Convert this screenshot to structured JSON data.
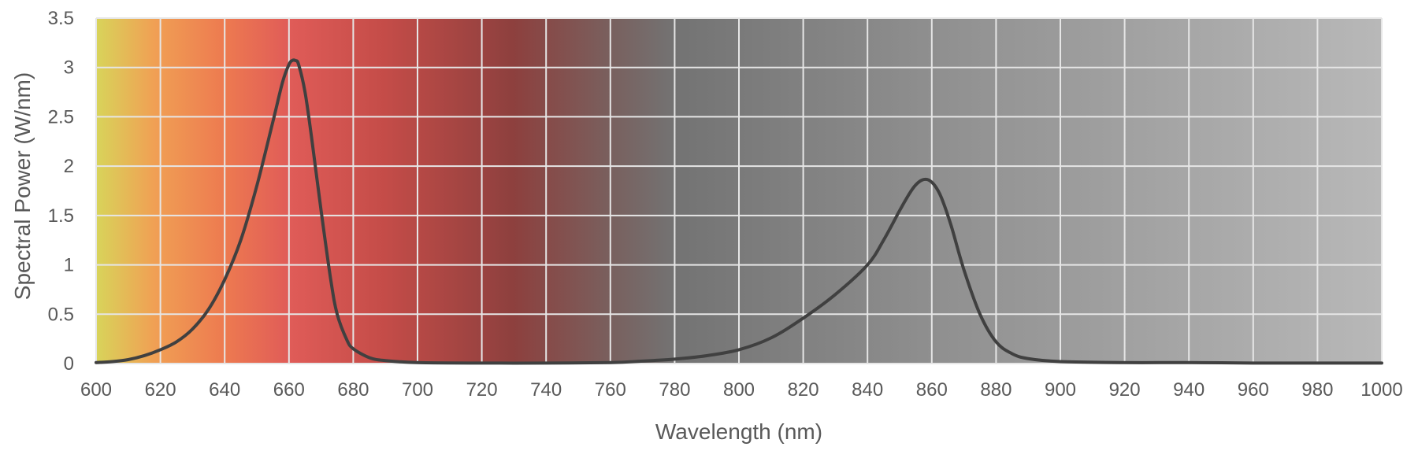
{
  "chart_data": {
    "type": "line",
    "title": "",
    "xlabel": "Wavelength (nm)",
    "ylabel": "Spectral Power (W/nm)",
    "xlim": [
      600,
      1000
    ],
    "ylim": [
      0,
      3.5
    ],
    "x_ticks": [
      600,
      620,
      640,
      660,
      680,
      700,
      720,
      740,
      760,
      780,
      800,
      820,
      840,
      860,
      880,
      900,
      920,
      940,
      960,
      980,
      1000
    ],
    "y_ticks": [
      0,
      0.5,
      1,
      1.5,
      2,
      2.5,
      3,
      3.5
    ],
    "y_tick_labels": [
      "0",
      "0.5",
      "1",
      "1.5",
      "2",
      "2.5",
      "3",
      "3.5"
    ],
    "grid": true,
    "background": "wavelength color gradient from yellow through red to grey",
    "gradient_stops": [
      {
        "x": 600,
        "color": "#d8d45a"
      },
      {
        "x": 618,
        "color": "#f0a054"
      },
      {
        "x": 640,
        "color": "#ed7a50"
      },
      {
        "x": 660,
        "color": "#e05c58"
      },
      {
        "x": 690,
        "color": "#c44c48"
      },
      {
        "x": 730,
        "color": "#8d403e"
      },
      {
        "x": 760,
        "color": "#79605e"
      },
      {
        "x": 780,
        "color": "#737373"
      },
      {
        "x": 860,
        "color": "#8f8f8f"
      },
      {
        "x": 1000,
        "color": "#b8b8b8"
      }
    ],
    "line_color": "#404040",
    "series": [
      {
        "x": [
          600,
          605,
          610,
          615,
          620,
          625,
          630,
          635,
          640,
          645,
          650,
          655,
          658,
          660,
          661,
          662,
          663,
          665,
          667,
          670,
          673,
          675,
          678,
          680,
          685,
          690,
          700,
          720,
          740,
          760,
          770,
          780,
          790,
          800,
          810,
          820,
          830,
          840,
          845,
          850,
          853,
          855,
          857,
          859,
          861,
          863,
          866,
          870,
          875,
          880,
          885,
          890,
          900,
          920,
          940,
          960,
          980,
          1000
        ],
        "y": [
          0.01,
          0.02,
          0.04,
          0.08,
          0.14,
          0.22,
          0.35,
          0.55,
          0.85,
          1.25,
          1.8,
          2.45,
          2.85,
          3.03,
          3.07,
          3.07,
          3.03,
          2.75,
          2.3,
          1.55,
          0.85,
          0.5,
          0.24,
          0.15,
          0.06,
          0.03,
          0.01,
          0.005,
          0.005,
          0.01,
          0.025,
          0.045,
          0.08,
          0.14,
          0.26,
          0.46,
          0.7,
          1.0,
          1.25,
          1.55,
          1.72,
          1.81,
          1.86,
          1.86,
          1.8,
          1.68,
          1.4,
          0.95,
          0.5,
          0.22,
          0.1,
          0.05,
          0.02,
          0.01,
          0.01,
          0.005,
          0.005,
          0.005
        ]
      }
    ]
  }
}
